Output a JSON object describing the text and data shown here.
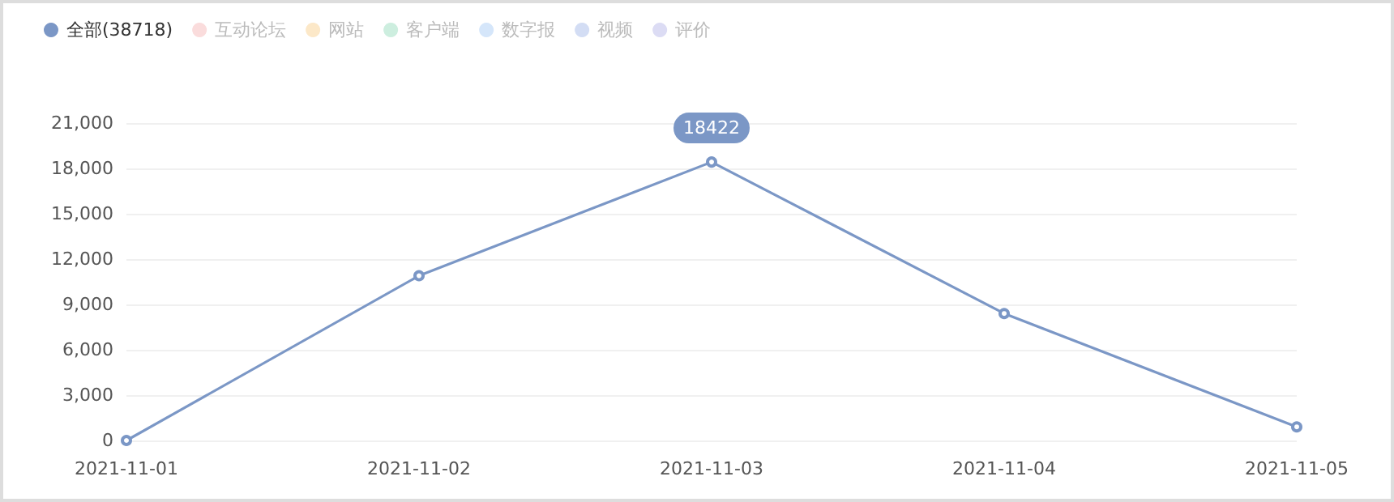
{
  "chart_data": {
    "type": "line",
    "categories": [
      "2021-11-01",
      "2021-11-02",
      "2021-11-03",
      "2021-11-04",
      "2021-11-05"
    ],
    "series": [
      {
        "name": "全部(38718)",
        "color": "#7b97c6",
        "values": [
          0,
          10900,
          18422,
          8400,
          900
        ],
        "value_labels": [
          null,
          null,
          "18422",
          null,
          null
        ]
      },
      {
        "name": "互动论坛",
        "color": "#fadcdc",
        "values": [
          null,
          null,
          null,
          null,
          null
        ]
      },
      {
        "name": "网站",
        "color": "#fce8c8",
        "values": [
          null,
          null,
          null,
          null,
          null
        ]
      },
      {
        "name": "客户端",
        "color": "#cdeedf",
        "values": [
          null,
          null,
          null,
          null,
          null
        ]
      },
      {
        "name": "数字报",
        "color": "#d5e6fa",
        "values": [
          null,
          null,
          null,
          null,
          null
        ]
      },
      {
        "name": "视频",
        "color": "#d3ddf4",
        "values": [
          null,
          null,
          null,
          null,
          null
        ]
      },
      {
        "name": "评价",
        "color": "#dcdcf4",
        "values": [
          null,
          null,
          null,
          null,
          null
        ]
      }
    ],
    "ylim": [
      0,
      21000
    ],
    "yticks": [
      0,
      {
        "value": 3000,
        "label": "3,000"
      },
      {
        "value": 6000,
        "label": "6,000"
      },
      {
        "value": 9000,
        "label": "9,000"
      },
      {
        "value": 12000,
        "label": "12,000"
      },
      {
        "value": 15000,
        "label": "15,000"
      },
      {
        "value": 18000,
        "label": "18,000"
      },
      {
        "value": 21000,
        "label": "21,000"
      }
    ],
    "grid": "y",
    "legend": "top left",
    "marker": "circle",
    "line_style": "solid"
  }
}
